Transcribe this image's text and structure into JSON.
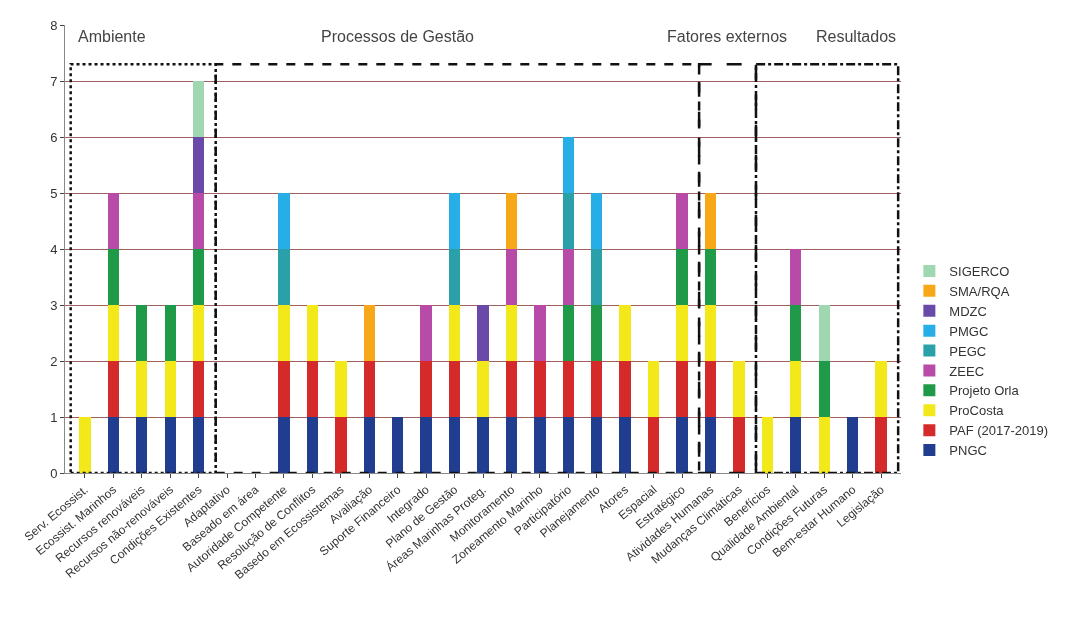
{
  "chart_data": {
    "type": "bar",
    "stacked": true,
    "categories": [
      "Serv. Ecossist.",
      "Ecossist. Marinhos",
      "Recursos renováveis",
      "Recursos não-renováveis",
      "Condições Existentes",
      "Adaptativo",
      "Baseado em área",
      "Autoridade Competente",
      "Resolução de Conflitos",
      "Basedo em Ecossistemas",
      "Avaliação",
      "Suporte Financeiro",
      "Integrado",
      "Plano de Gestão",
      "Áreas Marinhas Proteg.",
      "Monitoramento",
      "Zoneamento Marinho",
      "Participatório",
      "Planejamento",
      "Atores",
      "Espacial",
      "Estratégico",
      "Atividades Humanas",
      "Mudanças Climáticas",
      "Benefícios",
      "Qualidade Ambiental",
      "Condições Futuras",
      "Bem-estar Humano",
      "Legislação"
    ],
    "series": [
      {
        "name": "PNGC",
        "color": "#203d8f",
        "values": [
          null,
          1,
          1,
          1,
          1,
          null,
          null,
          1,
          1,
          null,
          1,
          1,
          1,
          1,
          1,
          1,
          1,
          1,
          1,
          1,
          null,
          1,
          1,
          null,
          null,
          1,
          null,
          1,
          null
        ]
      },
      {
        "name": "PAF (2017-2019)",
        "color": "#d42a2a",
        "values": [
          null,
          1,
          null,
          null,
          1,
          null,
          null,
          1,
          1,
          1,
          1,
          null,
          1,
          1,
          null,
          1,
          1,
          1,
          1,
          1,
          1,
          1,
          1,
          1,
          null,
          null,
          null,
          null,
          1
        ]
      },
      {
        "name": "ProCosta",
        "color": "#f2e81a",
        "values": [
          1,
          1,
          1,
          1,
          1,
          null,
          null,
          1,
          1,
          1,
          null,
          null,
          null,
          1,
          1,
          1,
          null,
          null,
          null,
          1,
          1,
          1,
          1,
          1,
          1,
          1,
          1,
          null,
          1
        ]
      },
      {
        "name": "Projeto Orla",
        "color": "#1f9a48",
        "values": [
          null,
          1,
          1,
          1,
          1,
          null,
          null,
          null,
          null,
          null,
          null,
          null,
          null,
          null,
          null,
          null,
          null,
          1,
          1,
          null,
          null,
          1,
          1,
          null,
          null,
          1,
          1,
          null,
          null
        ]
      },
      {
        "name": "ZEEC",
        "color": "#b84aa8",
        "values": [
          null,
          1,
          null,
          null,
          1,
          null,
          null,
          null,
          null,
          null,
          null,
          null,
          1,
          null,
          null,
          1,
          1,
          1,
          null,
          null,
          null,
          1,
          null,
          null,
          null,
          1,
          null,
          null,
          null
        ]
      },
      {
        "name": "PEGC",
        "color": "#2aa0a8",
        "values": [
          null,
          null,
          null,
          null,
          null,
          null,
          null,
          1,
          null,
          null,
          null,
          null,
          null,
          1,
          null,
          null,
          null,
          1,
          1,
          null,
          null,
          null,
          null,
          null,
          null,
          null,
          null,
          null,
          null
        ]
      },
      {
        "name": "PMGC",
        "color": "#27aee6",
        "values": [
          null,
          null,
          null,
          null,
          null,
          null,
          null,
          1,
          null,
          null,
          null,
          null,
          null,
          1,
          null,
          null,
          null,
          1,
          1,
          null,
          null,
          null,
          null,
          null,
          null,
          null,
          null,
          null,
          null
        ]
      },
      {
        "name": "MDZC",
        "color": "#6a4aa8",
        "values": [
          null,
          null,
          null,
          null,
          1,
          null,
          null,
          null,
          null,
          null,
          null,
          null,
          null,
          null,
          1,
          null,
          null,
          null,
          null,
          null,
          null,
          null,
          null,
          null,
          null,
          null,
          null,
          null,
          null
        ]
      },
      {
        "name": "SMA/RQA",
        "color": "#f7a818",
        "values": [
          null,
          null,
          null,
          null,
          null,
          null,
          null,
          null,
          null,
          null,
          1,
          null,
          null,
          null,
          null,
          1,
          null,
          null,
          null,
          null,
          null,
          null,
          1,
          null,
          null,
          null,
          null,
          null,
          null
        ]
      },
      {
        "name": "SIGERCO",
        "color": "#9fd8b0",
        "values": [
          null,
          null,
          null,
          null,
          1,
          null,
          null,
          null,
          null,
          null,
          null,
          null,
          null,
          null,
          null,
          null,
          null,
          null,
          null,
          null,
          null,
          null,
          null,
          null,
          null,
          null,
          1,
          null,
          null
        ]
      }
    ],
    "ylim": [
      0,
      8
    ],
    "yticks": [
      0,
      1,
      2,
      3,
      4,
      5,
      6,
      7,
      8
    ],
    "grid": "y",
    "legend": "right",
    "annotations": [
      "Ambiente",
      "Processos de Gestão",
      "Fatores externos",
      "Resultados"
    ]
  }
}
